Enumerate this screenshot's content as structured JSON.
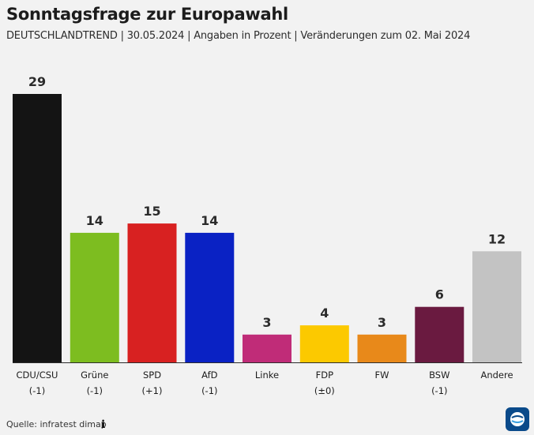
{
  "header": {
    "title": "Sonntagsfrage zur Europawahl",
    "subtitle": "DEUTSCHLANDTREND | 30.05.2024 | Angaben in Prozent | Veränderungen zum 02. Mai 2024"
  },
  "chart_data": {
    "type": "bar",
    "title": "Sonntagsfrage zur Europawahl",
    "subtitle": "DEUTSCHLANDTREND | 30.05.2024 | Angaben in Prozent | Veränderungen zum 02. Mai 2024",
    "categories": [
      "CDU/CSU",
      "Grüne",
      "SPD",
      "AfD",
      "Linke",
      "FDP",
      "FW",
      "BSW",
      "Andere"
    ],
    "values": [
      29,
      14,
      15,
      14,
      3,
      4,
      3,
      6,
      12
    ],
    "changes": [
      "(-1)",
      "(-1)",
      "(+1)",
      "(-1)",
      "",
      "(±0)",
      "",
      "(-1)",
      ""
    ],
    "colors": [
      "#141414",
      "#7dbd20",
      "#d82121",
      "#0a22c4",
      "#c02c78",
      "#fcc900",
      "#e8891a",
      "#6a1a40",
      "#c3c3c3"
    ],
    "xlabel": "",
    "ylabel": "",
    "ylim": [
      0,
      29
    ],
    "grid": false,
    "legend": "none"
  },
  "footer": {
    "source": "Quelle: infratest dimap",
    "info_icon": "info-icon",
    "logo_icon": "tagesschau-logo-icon"
  }
}
